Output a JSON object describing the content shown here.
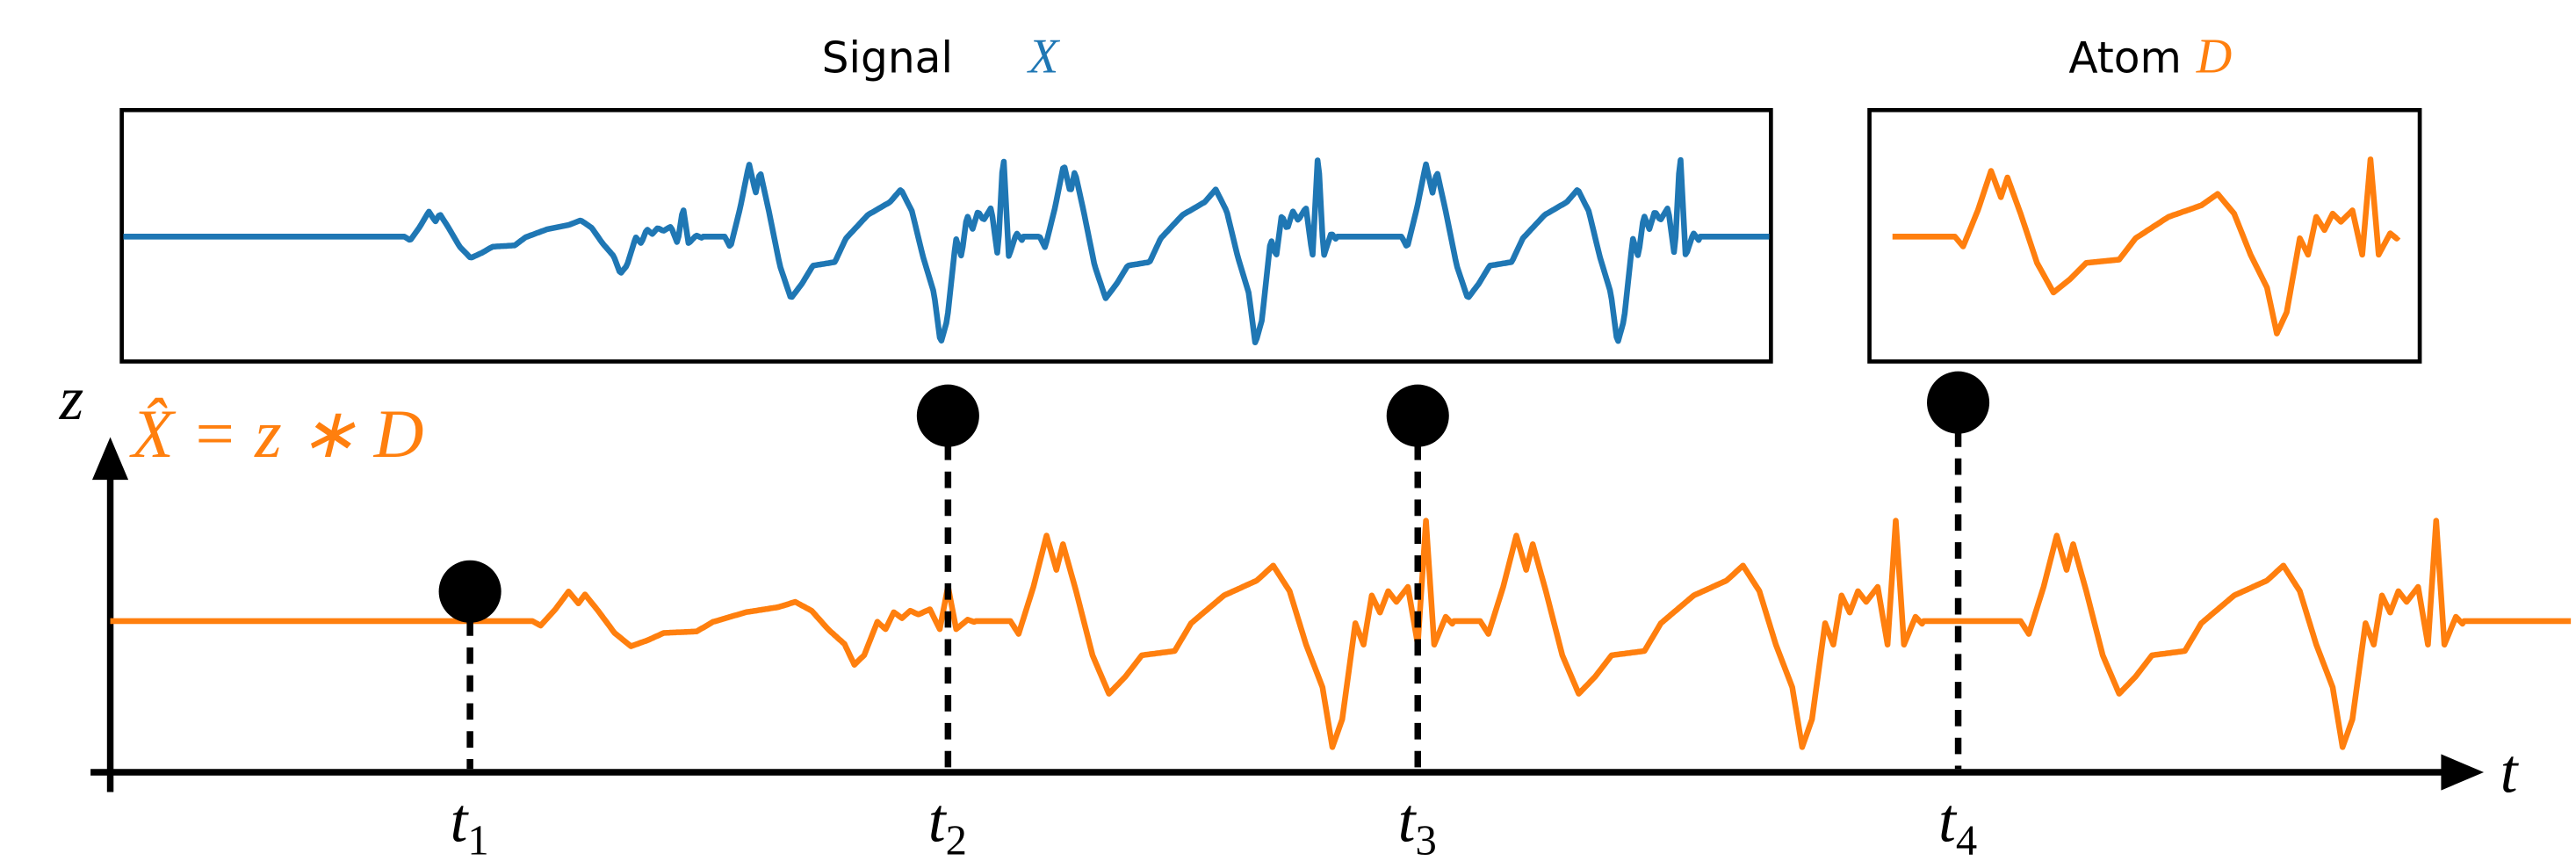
{
  "signal_title": {
    "label": "Signal",
    "symbol": "X"
  },
  "atom_title": {
    "label": "Atom",
    "symbol": "D"
  },
  "y_axis_label": "z",
  "formula": "X̂ = z ∗ D",
  "x_axis_label": "t",
  "time_ticks": [
    {
      "base": "t",
      "sub": "1"
    },
    {
      "base": "t",
      "sub": "2"
    },
    {
      "base": "t",
      "sub": "3"
    },
    {
      "base": "t",
      "sub": "4"
    }
  ]
}
